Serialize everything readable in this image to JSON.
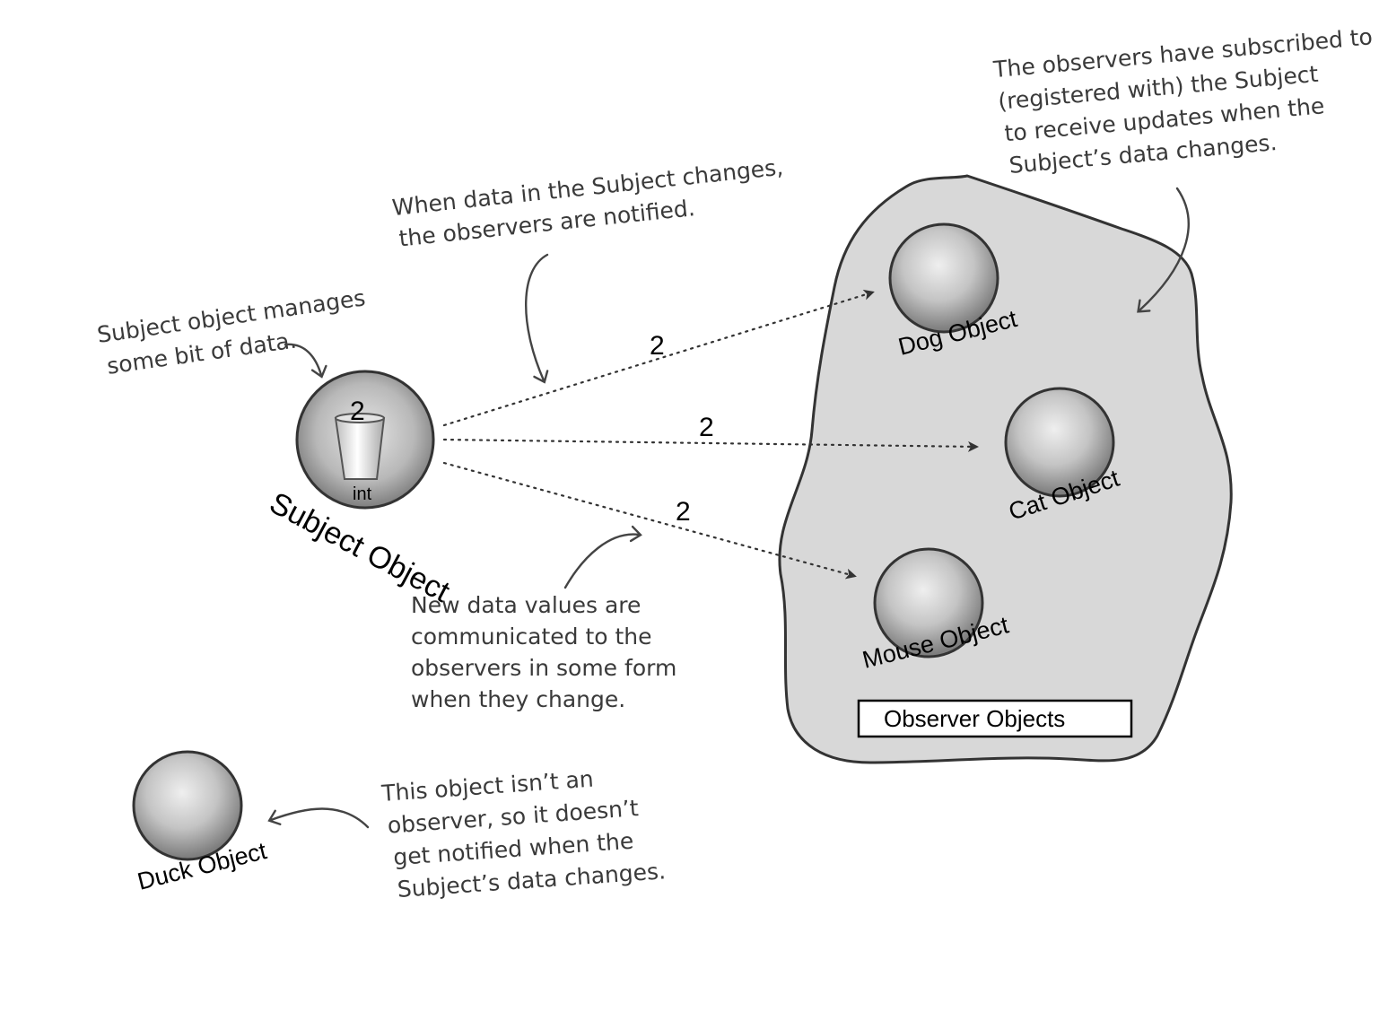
{
  "colors": {
    "cloud_fill": "#d7d7d7",
    "outline": "#333333",
    "sphere_light": "#e8e8e8",
    "sphere_dark": "#8a8a8a"
  },
  "objects": {
    "subject": {
      "label": "Subject Object",
      "value": "2",
      "type_label": "int"
    },
    "dog": {
      "label": "Dog Object"
    },
    "cat": {
      "label": "Cat Object"
    },
    "mouse": {
      "label": "Mouse Object"
    },
    "duck": {
      "label": "Duck Object"
    }
  },
  "observer_box_label": "Observer Objects",
  "arrows": {
    "to_dog_value": "2",
    "to_cat_value": "2",
    "to_mouse_value": "2"
  },
  "notes": {
    "subject_manages": [
      "Subject object manages",
      "some bit of data."
    ],
    "notified": [
      "When data in the Subject changes,",
      "the observers are notified."
    ],
    "subscribed": [
      "The observers have subscribed to",
      "(registered with) the Subject",
      "to receive updates when the",
      "Subject’s data changes."
    ],
    "communicated": [
      "New data values are",
      "communicated to the",
      "observers in some form",
      "when they change."
    ],
    "not_observer": [
      "This object isn’t an",
      "observer, so it doesn’t",
      "get notified when the",
      "Subject’s data changes."
    ]
  }
}
